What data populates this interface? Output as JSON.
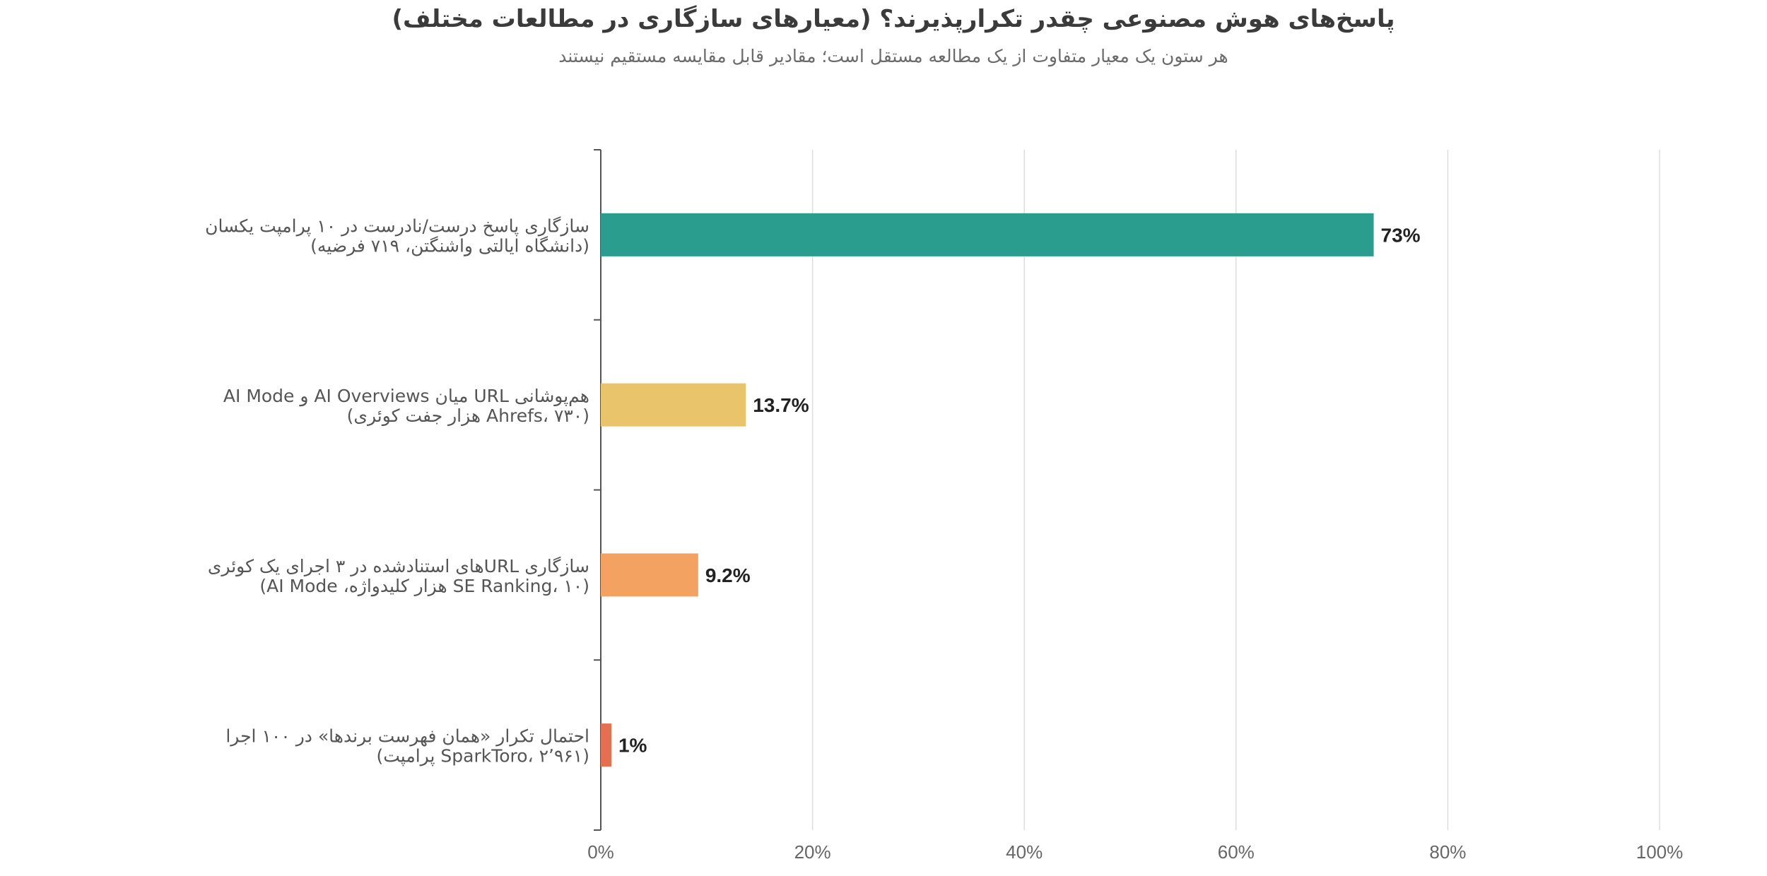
{
  "chart_data": {
    "type": "bar",
    "orientation": "horizontal",
    "title": "پاسخ‌های هوش مصنوعی چقدر تکرارپذیرند؟ (معیارهای سازگاری در مطالعات مختلف)",
    "subtitle": "هر ستون یک معیار متفاوت از یک مطالعه مستقل است؛ مقادیر قابل مقایسه مستقیم نیستند",
    "xlabel": "",
    "ylabel": "",
    "xlim": [
      0,
      100
    ],
    "tick_values": [
      0,
      20,
      40,
      60,
      80,
      100
    ],
    "tick_labels": [
      "0%",
      "20%",
      "40%",
      "60%",
      "80%",
      "100%"
    ],
    "grid": true,
    "categories": [
      {
        "line1": "سازگاری پاسخ درست/نادرست در ۱۰ پرامپت یکسان",
        "line2": "(دانشگاه ایالتی واشنگتن، ۷۱۹ فرضیه)"
      },
      {
        "line1": "هم‌پوشانی URL میان AI Overviews و AI Mode",
        "line2": "(Ahrefs، ۷۳۰ هزار جفت کوئری)"
      },
      {
        "line1": "سازگاری URLهای استنادشده در ۳ اجرای یک کوئری",
        "line2": "(SE Ranking، ۱۰ هزار کلیدواژه، AI Mode)"
      },
      {
        "line1": "احتمال تکرار «همان فهرست برندها» در ۱۰۰ اجرا",
        "line2": "(SparkToro، ۲٬۹۶۱ پرامپت)"
      }
    ],
    "values": [
      73,
      13.7,
      9.2,
      1
    ],
    "value_labels": [
      "73%",
      "13.7%",
      "9.2%",
      "1%"
    ],
    "colors": [
      "#2a9d8f",
      "#e9c46a",
      "#f4a261",
      "#e76f51"
    ]
  }
}
